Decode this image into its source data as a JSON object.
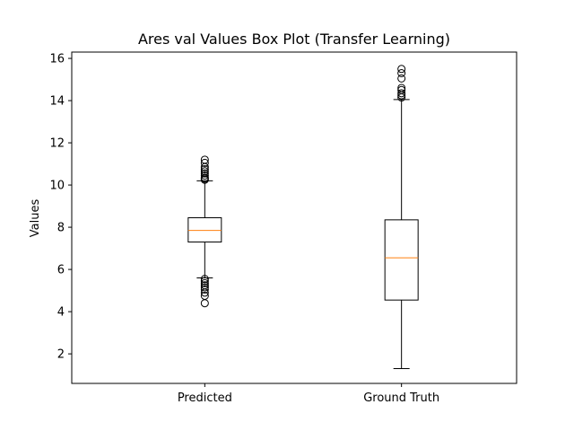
{
  "chart_data": {
    "type": "box",
    "title": "Ares val Values Box Plot (Transfer Learning)",
    "xlabel": "",
    "ylabel": "Values",
    "ylim": [
      0.6,
      16.3
    ],
    "yticks": [
      2,
      4,
      6,
      8,
      10,
      12,
      14,
      16
    ],
    "grid": false,
    "series": [
      {
        "name": "Predicted",
        "whisker_low": 5.6,
        "q1": 7.3,
        "median": 7.85,
        "q3": 8.45,
        "whisker_high": 10.2,
        "outliers_high": [
          10.25,
          10.3,
          10.35,
          10.45,
          10.55,
          10.65,
          10.75,
          10.85,
          11.05,
          11.2
        ],
        "outliers_low": [
          5.55,
          5.45,
          5.35,
          5.25,
          5.15,
          5.05,
          4.9,
          4.75,
          4.4
        ]
      },
      {
        "name": "Ground Truth",
        "whisker_low": 1.3,
        "q1": 4.55,
        "median": 6.55,
        "q3": 8.35,
        "whisker_high": 14.05,
        "outliers_high": [
          14.15,
          14.25,
          14.35,
          14.5,
          14.6,
          15.05,
          15.3,
          15.5
        ],
        "outliers_low": []
      }
    ],
    "colors": {
      "box": "#000000",
      "median": "#ff7f0e",
      "outlier": "#000000"
    }
  }
}
